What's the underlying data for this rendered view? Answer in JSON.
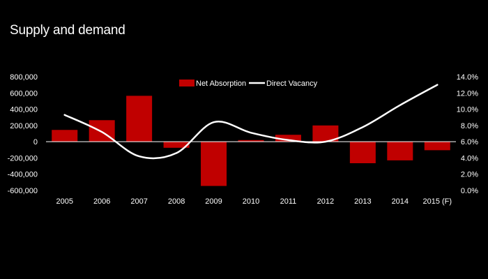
{
  "title": "Supply and demand",
  "chart_data": {
    "type": "bar+line",
    "title": "Supply and demand",
    "categories": [
      "2005",
      "2006",
      "2007",
      "2008",
      "2009",
      "2010",
      "2011",
      "2012",
      "2013",
      "2014",
      "2015 (F)"
    ],
    "series": [
      {
        "name": "Net Absorption",
        "type": "bar",
        "axis": "left",
        "color": "#c00000",
        "values": [
          145000,
          265000,
          565000,
          -75000,
          -545000,
          20000,
          85000,
          200000,
          -265000,
          -230000,
          -105000
        ]
      },
      {
        "name": "Direct Vacancy",
        "type": "line",
        "axis": "right",
        "color": "#ffffff",
        "values": [
          9.3,
          7.2,
          4.2,
          4.6,
          8.4,
          7.1,
          6.2,
          6.0,
          7.8,
          10.5,
          13.0
        ]
      }
    ],
    "y_left": {
      "min": -600000,
      "max": 800000,
      "ticks": [
        800000,
        600000,
        400000,
        200000,
        0,
        -200000,
        -400000,
        -600000
      ],
      "tick_labels": [
        "800,000",
        "600,000",
        "400,000",
        "200,000",
        "0",
        "-200,000",
        "-400,000",
        "-600,000"
      ]
    },
    "y_right": {
      "min": 0,
      "max": 14,
      "ticks": [
        14,
        12,
        10,
        8,
        6,
        4,
        2,
        0
      ],
      "tick_labels": [
        "14.0%",
        "12.0%",
        "10.0%",
        "8.0%",
        "6.0%",
        "4.0%",
        "2.0%",
        "0.0%"
      ]
    },
    "legend": {
      "placement": "top-center",
      "items": [
        {
          "label": "Net Absorption",
          "color": "#c00000",
          "shape": "box"
        },
        {
          "label": "Direct Vacancy",
          "color": "#ffffff",
          "shape": "line"
        }
      ]
    },
    "grid": false,
    "background": "#000000"
  }
}
